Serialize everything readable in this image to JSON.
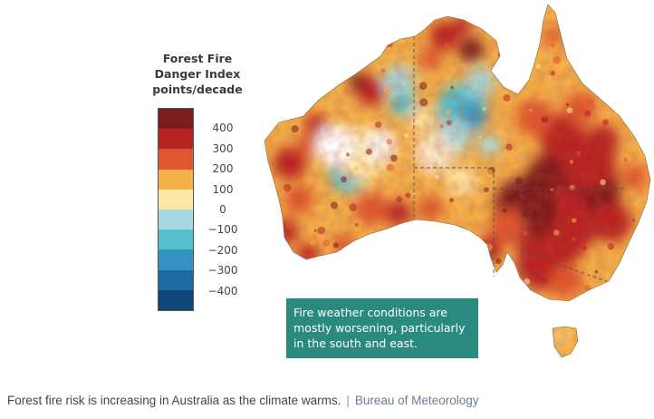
{
  "legend": {
    "title_lines": [
      "Forest Fire",
      "Danger Index",
      "points/decade"
    ],
    "ticks": [
      "400",
      "300",
      "200",
      "100",
      "0",
      "−100",
      "−200",
      "−300",
      "−400"
    ],
    "colors": [
      "#7b1c1e",
      "#b92224",
      "#e0572f",
      "#f5b147",
      "#fde7a6",
      "#a7dade",
      "#55c1cd",
      "#3592c1",
      "#1f6aa3",
      "#10467a"
    ]
  },
  "callout": {
    "text": "Fire weather conditions are mostly worsening, particularly in the south and east.",
    "background": "#2a8a80"
  },
  "caption": {
    "text": "Forest fire risk is increasing in Australia as the climate warms.",
    "separator": "|",
    "credit": "Bureau of Meteorology"
  }
}
